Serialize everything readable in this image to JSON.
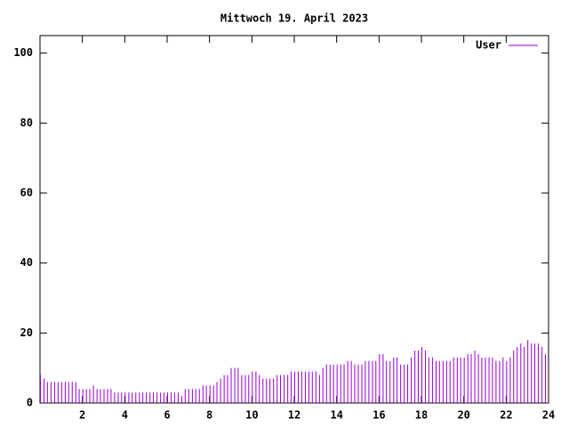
{
  "chart_data": {
    "type": "impulse",
    "title": "Mittwoch 19. April 2023",
    "series": [
      {
        "name": "User",
        "color": "#9400d3",
        "x": [
          0,
          0.17,
          0.33,
          0.5,
          0.67,
          0.83,
          1,
          1.17,
          1.33,
          1.5,
          1.67,
          1.83,
          2,
          2.17,
          2.33,
          2.5,
          2.67,
          2.83,
          3,
          3.17,
          3.33,
          3.5,
          3.67,
          3.83,
          4,
          4.17,
          4.33,
          4.5,
          4.67,
          4.83,
          5,
          5.17,
          5.33,
          5.5,
          5.67,
          5.83,
          6,
          6.17,
          6.33,
          6.5,
          6.67,
          6.83,
          7,
          7.17,
          7.33,
          7.5,
          7.67,
          7.83,
          8,
          8.17,
          8.33,
          8.5,
          8.67,
          8.83,
          9,
          9.17,
          9.33,
          9.5,
          9.67,
          9.83,
          10,
          10.17,
          10.33,
          10.5,
          10.67,
          10.83,
          11,
          11.17,
          11.33,
          11.5,
          11.67,
          11.83,
          12,
          12.17,
          12.33,
          12.5,
          12.67,
          12.83,
          13,
          13.17,
          13.33,
          13.5,
          13.67,
          13.83,
          14,
          14.17,
          14.33,
          14.5,
          14.67,
          14.83,
          15,
          15.17,
          15.33,
          15.5,
          15.67,
          15.83,
          16,
          16.17,
          16.33,
          16.5,
          16.67,
          16.83,
          17,
          17.17,
          17.33,
          17.5,
          17.67,
          17.83,
          18,
          18.17,
          18.33,
          18.5,
          18.67,
          18.83,
          19,
          19.17,
          19.33,
          19.5,
          19.67,
          19.83,
          20,
          20.17,
          20.33,
          20.5,
          20.67,
          20.83,
          21,
          21.17,
          21.33,
          21.5,
          21.67,
          21.83,
          22,
          22.17,
          22.33,
          22.5,
          22.67,
          22.83,
          23,
          23.17,
          23.33,
          23.5,
          23.67,
          23.83
        ],
        "values": [
          8,
          7,
          6,
          6,
          6,
          6,
          6,
          6,
          6,
          6,
          6,
          4,
          4,
          4,
          4,
          5,
          4,
          4,
          4,
          4,
          4,
          3,
          3,
          3,
          3,
          3,
          3,
          3,
          3,
          3,
          3,
          3,
          3,
          3,
          3,
          3,
          3,
          3,
          3,
          3,
          2,
          4,
          4,
          4,
          4,
          4,
          5,
          5,
          5,
          5,
          6,
          7,
          8,
          8,
          10,
          10,
          10,
          8,
          8,
          8,
          9,
          9,
          8,
          7,
          7,
          7,
          7,
          8,
          8,
          8,
          8,
          9,
          9,
          9,
          9,
          9,
          9,
          9,
          9,
          8,
          10,
          11,
          11,
          11,
          11,
          11,
          11,
          12,
          12,
          11,
          11,
          11,
          12,
          12,
          12,
          12,
          14,
          14,
          12,
          12,
          13,
          13,
          11,
          11,
          11,
          13,
          15,
          15,
          16,
          15,
          13,
          13,
          12,
          12,
          12,
          12,
          12,
          13,
          13,
          13,
          13,
          14,
          14,
          15,
          14,
          13,
          13,
          13,
          13,
          12,
          12,
          13,
          12,
          13,
          15,
          16,
          17,
          16,
          18,
          17,
          17,
          17,
          16,
          14
        ]
      }
    ],
    "xlim": [
      0,
      24
    ],
    "xticks": [
      2,
      4,
      6,
      8,
      10,
      12,
      14,
      16,
      18,
      20,
      22,
      24
    ],
    "ylim": [
      0,
      105
    ],
    "yticks": [
      0,
      20,
      40,
      60,
      80,
      100
    ],
    "legend": "top-right"
  }
}
